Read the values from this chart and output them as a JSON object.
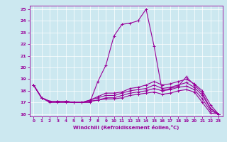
{
  "xlabel": "Windchill (Refroidissement éolien,°C)",
  "background_color": "#cce8f0",
  "line_color": "#990099",
  "xlim": [
    -0.5,
    23.5
  ],
  "ylim": [
    15.8,
    25.3
  ],
  "yticks": [
    16,
    17,
    18,
    19,
    20,
    21,
    22,
    23,
    24,
    25
  ],
  "xticks": [
    0,
    1,
    2,
    3,
    4,
    5,
    6,
    7,
    8,
    9,
    10,
    11,
    12,
    13,
    14,
    15,
    16,
    17,
    18,
    19,
    20,
    21,
    22,
    23
  ],
  "lines": [
    [
      18.5,
      17.4,
      17.0,
      17.0,
      17.0,
      17.0,
      17.0,
      17.0,
      18.8,
      20.2,
      22.7,
      23.7,
      23.8,
      24.0,
      25.0,
      21.8,
      18.0,
      18.2,
      18.4,
      19.2,
      18.5,
      17.8,
      16.5,
      16.0
    ],
    [
      18.5,
      17.4,
      17.1,
      17.1,
      17.1,
      17.0,
      17.0,
      17.2,
      17.5,
      17.8,
      17.8,
      17.9,
      18.2,
      18.3,
      18.5,
      18.8,
      18.5,
      18.6,
      18.8,
      19.0,
      18.6,
      18.0,
      16.8,
      16.0
    ],
    [
      18.5,
      17.4,
      17.1,
      17.1,
      17.1,
      17.0,
      17.0,
      17.2,
      17.4,
      17.6,
      17.6,
      17.8,
      18.0,
      18.1,
      18.2,
      18.5,
      18.2,
      18.3,
      18.5,
      18.7,
      18.3,
      17.6,
      16.5,
      16.0
    ],
    [
      18.5,
      17.4,
      17.1,
      17.1,
      17.1,
      17.0,
      17.0,
      17.1,
      17.2,
      17.4,
      17.4,
      17.6,
      17.8,
      17.9,
      18.0,
      18.2,
      18.0,
      18.1,
      18.3,
      18.4,
      18.1,
      17.3,
      16.3,
      16.0
    ],
    [
      18.5,
      17.4,
      17.1,
      17.1,
      17.1,
      17.0,
      17.0,
      17.1,
      17.2,
      17.3,
      17.3,
      17.4,
      17.6,
      17.7,
      17.8,
      17.9,
      17.7,
      17.8,
      18.0,
      18.1,
      17.9,
      17.0,
      16.1,
      16.0
    ]
  ]
}
